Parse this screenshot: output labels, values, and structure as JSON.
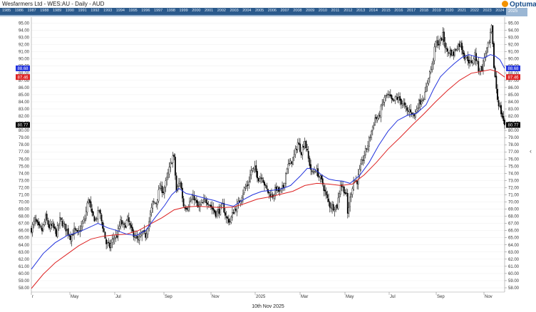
{
  "title": "Wesfarmers Ltd - WES:AU - Daily - AUD",
  "logo_text": "Optuma",
  "footer_date": "10th Nov 2025",
  "navigator_years": [
    "1985",
    "1986",
    "1987",
    "1988",
    "1989",
    "1990",
    "1991",
    "1992",
    "1993",
    "1994",
    "1995",
    "1996",
    "1997",
    "1998",
    "1999",
    "2000",
    "2001",
    "2002",
    "2003",
    "2004",
    "2005",
    "2006",
    "2007",
    "2008",
    "2009",
    "2010",
    "2011",
    "2012",
    "2013",
    "2014",
    "2015",
    "2016",
    "2017",
    "2018",
    "2019",
    "2020",
    "2021",
    "2022",
    "2023",
    "2024",
    "2025"
  ],
  "side_arrow": "‹",
  "colors": {
    "candles": "#000000",
    "ma_blue": "#2233dd",
    "ma_red": "#dd2222",
    "nav_bg": "#2b5a8c",
    "gridline": "#eeeeee"
  },
  "chart_data": {
    "type": "candlestick",
    "x_ticks": [
      "r",
      "May",
      "Jul",
      "Sep",
      "Nov",
      "2025",
      "Mar",
      "May",
      "Jul",
      "Sep",
      "Nov"
    ],
    "y_ticks_left": [
      "95.00",
      "94.00",
      "93.00",
      "92.00",
      "91.00",
      "90.00",
      "89.00",
      "88.00",
      "87.00",
      "86.00",
      "85.00",
      "84.00",
      "83.00",
      "82.00",
      "81.00",
      "80.00",
      "79.00",
      "78.00",
      "77.00",
      "76.00",
      "75.00",
      "74.00",
      "73.00",
      "72.00",
      "71.00",
      "70.00",
      "69.00",
      "68.00",
      "67.00",
      "66.00",
      "65.00",
      "64.00",
      "63.00",
      "62.00",
      "61.00",
      "60.00",
      "59.00",
      "58.00"
    ],
    "y_ticks_right": [
      "95.00",
      "94.00",
      "93.00",
      "92.00",
      "91.00",
      "90.00",
      "89.00",
      "88.00",
      "87.00",
      "86.00",
      "85.00",
      "84.00",
      "83.00",
      "82.00",
      "81.00",
      "80.00",
      "79.00",
      "78.00",
      "77.00",
      "76.00",
      "75.00",
      "74.00",
      "73.00",
      "72.00",
      "71.00",
      "70.00",
      "69.00",
      "68.00",
      "67.00",
      "66.00",
      "65.00",
      "64.00",
      "63.00",
      "62.00",
      "61.00",
      "60.00",
      "59.00",
      "58.00"
    ],
    "ylim": [
      58,
      95
    ],
    "price_labels_left": [
      {
        "text": "88.68",
        "value": 88.68,
        "color": "#2233dd"
      },
      {
        "text": "87.46",
        "value": 87.46,
        "color": "#dd2222"
      },
      {
        "text": "80.77",
        "value": 80.77,
        "color": "#000000"
      }
    ],
    "price_labels_right": [
      {
        "text": "88.68",
        "value": 88.68,
        "color": "#2233dd"
      },
      {
        "text": "87.46",
        "value": 87.46,
        "color": "#dd2222"
      },
      {
        "text": "80.77",
        "value": 80.77,
        "color": "#000000"
      }
    ],
    "close_path": [
      [
        0,
        66.2
      ],
      [
        3,
        67.5
      ],
      [
        6,
        66.4
      ],
      [
        9,
        66.0
      ],
      [
        12,
        67.8
      ],
      [
        15,
        66.5
      ],
      [
        18,
        66.6
      ],
      [
        21,
        65.6
      ],
      [
        24,
        67.5
      ],
      [
        27,
        66.8
      ],
      [
        30,
        66.0
      ],
      [
        33,
        65.1
      ],
      [
        36,
        66.0
      ],
      [
        39,
        65.5
      ],
      [
        42,
        66.5
      ],
      [
        45,
        67.7
      ],
      [
        48,
        70.6
      ],
      [
        51,
        68.1
      ],
      [
        54,
        67.5
      ],
      [
        57,
        68.8
      ],
      [
        60,
        66.6
      ],
      [
        63,
        64.2
      ],
      [
        66,
        63.7
      ],
      [
        69,
        65.0
      ],
      [
        72,
        65.3
      ],
      [
        75,
        67.2
      ],
      [
        78,
        66.5
      ],
      [
        81,
        67.6
      ],
      [
        84,
        66.0
      ],
      [
        87,
        65.3
      ],
      [
        90,
        64.4
      ],
      [
        93,
        65.6
      ],
      [
        96,
        65.3
      ],
      [
        99,
        67.3
      ],
      [
        102,
        69.8
      ],
      [
        105,
        69.9
      ],
      [
        108,
        72.1
      ],
      [
        111,
        71.5
      ],
      [
        114,
        73.2
      ],
      [
        117,
        75.2
      ],
      [
        119,
        76.4
      ],
      [
        120,
        76.0
      ],
      [
        122,
        71.5
      ],
      [
        125,
        73.0
      ],
      [
        128,
        69.5
      ],
      [
        131,
        69.3
      ],
      [
        134,
        70.2
      ],
      [
        137,
        70.6
      ],
      [
        140,
        69.2
      ],
      [
        143,
        69.6
      ],
      [
        146,
        70.2
      ],
      [
        149,
        70.0
      ],
      [
        152,
        69.1
      ],
      [
        155,
        68.4
      ],
      [
        158,
        68.8
      ],
      [
        161,
        69.5
      ],
      [
        164,
        67.7
      ],
      [
        167,
        67.3
      ],
      [
        170,
        68.7
      ],
      [
        173,
        69.4
      ],
      [
        176,
        70.5
      ],
      [
        179,
        71.8
      ],
      [
        182,
        72.4
      ],
      [
        185,
        74.4
      ],
      [
        188,
        74.6
      ],
      [
        191,
        73.3
      ],
      [
        194,
        73.6
      ],
      [
        197,
        72.0
      ],
      [
        200,
        71.1
      ],
      [
        203,
        70.9
      ],
      [
        206,
        71.9
      ],
      [
        209,
        71.3
      ],
      [
        212,
        72.1
      ],
      [
        215,
        74.9
      ],
      [
        218,
        75.4
      ],
      [
        221,
        76.4
      ],
      [
        224,
        78.3
      ],
      [
        227,
        77.0
      ],
      [
        230,
        78.6
      ],
      [
        233,
        76.0
      ],
      [
        236,
        73.9
      ],
      [
        239,
        74.6
      ],
      [
        242,
        73.6
      ],
      [
        245,
        72.5
      ],
      [
        248,
        70.8
      ],
      [
        251,
        69.5
      ],
      [
        254,
        69.3
      ],
      [
        257,
        69.4
      ],
      [
        260,
        72.5
      ],
      [
        263,
        71.7
      ],
      [
        265,
        70.8
      ],
      [
        266,
        68.3
      ],
      [
        268,
        70.5
      ],
      [
        271,
        73.0
      ],
      [
        274,
        72.9
      ],
      [
        277,
        74.9
      ],
      [
        280,
        76.6
      ],
      [
        283,
        78.0
      ],
      [
        286,
        79.9
      ],
      [
        289,
        81.7
      ],
      [
        292,
        81.7
      ],
      [
        295,
        83.6
      ],
      [
        298,
        84.8
      ],
      [
        301,
        84.7
      ],
      [
        304,
        83.9
      ],
      [
        307,
        84.6
      ],
      [
        310,
        84.2
      ],
      [
        313,
        83.6
      ],
      [
        316,
        82.6
      ],
      [
        319,
        82.8
      ],
      [
        322,
        82.0
      ],
      [
        325,
        83.6
      ],
      [
        328,
        84.3
      ],
      [
        331,
        85.0
      ],
      [
        334,
        87.6
      ],
      [
        337,
        89.1
      ],
      [
        340,
        92.3
      ],
      [
        343,
        92.2
      ],
      [
        346,
        93.3
      ],
      [
        349,
        91.1
      ],
      [
        352,
        91.0
      ],
      [
        355,
        90.7
      ],
      [
        358,
        91.8
      ],
      [
        361,
        92.1
      ],
      [
        364,
        90.4
      ],
      [
        367,
        90.0
      ],
      [
        370,
        89.2
      ],
      [
        373,
        90.7
      ],
      [
        376,
        88.6
      ],
      [
        379,
        88.7
      ],
      [
        382,
        90.9
      ],
      [
        385,
        92.2
      ],
      [
        387,
        94.4
      ],
      [
        389,
        89.0
      ],
      [
        392,
        84.4
      ],
      [
        395,
        82.5
      ],
      [
        398,
        80.77
      ]
    ],
    "ma_blue": [
      [
        0,
        60.6
      ],
      [
        10,
        62.8
      ],
      [
        20,
        64.3
      ],
      [
        30,
        65.3
      ],
      [
        40,
        65.8
      ],
      [
        48,
        66.4
      ],
      [
        56,
        67.0
      ],
      [
        64,
        66.4
      ],
      [
        72,
        66.0
      ],
      [
        80,
        65.5
      ],
      [
        88,
        65.3
      ],
      [
        96,
        66.0
      ],
      [
        104,
        67.8
      ],
      [
        112,
        69.5
      ],
      [
        118,
        71.0
      ],
      [
        124,
        71.9
      ],
      [
        130,
        71.2
      ],
      [
        138,
        70.9
      ],
      [
        146,
        70.5
      ],
      [
        154,
        70.2
      ],
      [
        162,
        69.7
      ],
      [
        170,
        69.4
      ],
      [
        178,
        70.3
      ],
      [
        186,
        71.0
      ],
      [
        194,
        71.5
      ],
      [
        202,
        71.6
      ],
      [
        210,
        71.8
      ],
      [
        218,
        72.3
      ],
      [
        226,
        73.6
      ],
      [
        232,
        74.7
      ],
      [
        238,
        74.6
      ],
      [
        244,
        73.8
      ],
      [
        250,
        73.2
      ],
      [
        256,
        73.0
      ],
      [
        262,
        72.9
      ],
      [
        268,
        72.6
      ],
      [
        276,
        73.7
      ],
      [
        284,
        75.5
      ],
      [
        292,
        77.9
      ],
      [
        300,
        79.9
      ],
      [
        308,
        81.4
      ],
      [
        316,
        82.1
      ],
      [
        324,
        82.4
      ],
      [
        332,
        83.6
      ],
      [
        338,
        85.7
      ],
      [
        344,
        87.5
      ],
      [
        350,
        88.5
      ],
      [
        356,
        89.4
      ],
      [
        362,
        90.2
      ],
      [
        368,
        90.6
      ],
      [
        374,
        90.3
      ],
      [
        380,
        90.1
      ],
      [
        386,
        90.6
      ],
      [
        390,
        90.4
      ],
      [
        394,
        89.9
      ],
      [
        398,
        88.68
      ]
    ],
    "ma_red": [
      [
        0,
        57.9
      ],
      [
        10,
        59.9
      ],
      [
        20,
        61.5
      ],
      [
        30,
        62.7
      ],
      [
        40,
        63.9
      ],
      [
        50,
        64.8
      ],
      [
        60,
        65.2
      ],
      [
        70,
        65.4
      ],
      [
        80,
        65.5
      ],
      [
        90,
        66.0
      ],
      [
        100,
        66.9
      ],
      [
        110,
        67.8
      ],
      [
        120,
        68.9
      ],
      [
        130,
        69.3
      ],
      [
        140,
        69.4
      ],
      [
        150,
        69.3
      ],
      [
        160,
        69.2
      ],
      [
        170,
        69.3
      ],
      [
        180,
        69.8
      ],
      [
        190,
        70.4
      ],
      [
        200,
        70.7
      ],
      [
        210,
        71.1
      ],
      [
        220,
        71.5
      ],
      [
        230,
        72.3
      ],
      [
        240,
        72.6
      ],
      [
        250,
        72.5
      ],
      [
        260,
        72.3
      ],
      [
        270,
        72.5
      ],
      [
        280,
        73.8
      ],
      [
        290,
        75.5
      ],
      [
        300,
        77.4
      ],
      [
        310,
        79.0
      ],
      [
        320,
        80.7
      ],
      [
        330,
        82.3
      ],
      [
        340,
        84.0
      ],
      [
        350,
        85.6
      ],
      [
        360,
        87.0
      ],
      [
        370,
        88.0
      ],
      [
        380,
        88.3
      ],
      [
        386,
        88.5
      ],
      [
        392,
        88.2
      ],
      [
        398,
        87.46
      ]
    ]
  }
}
